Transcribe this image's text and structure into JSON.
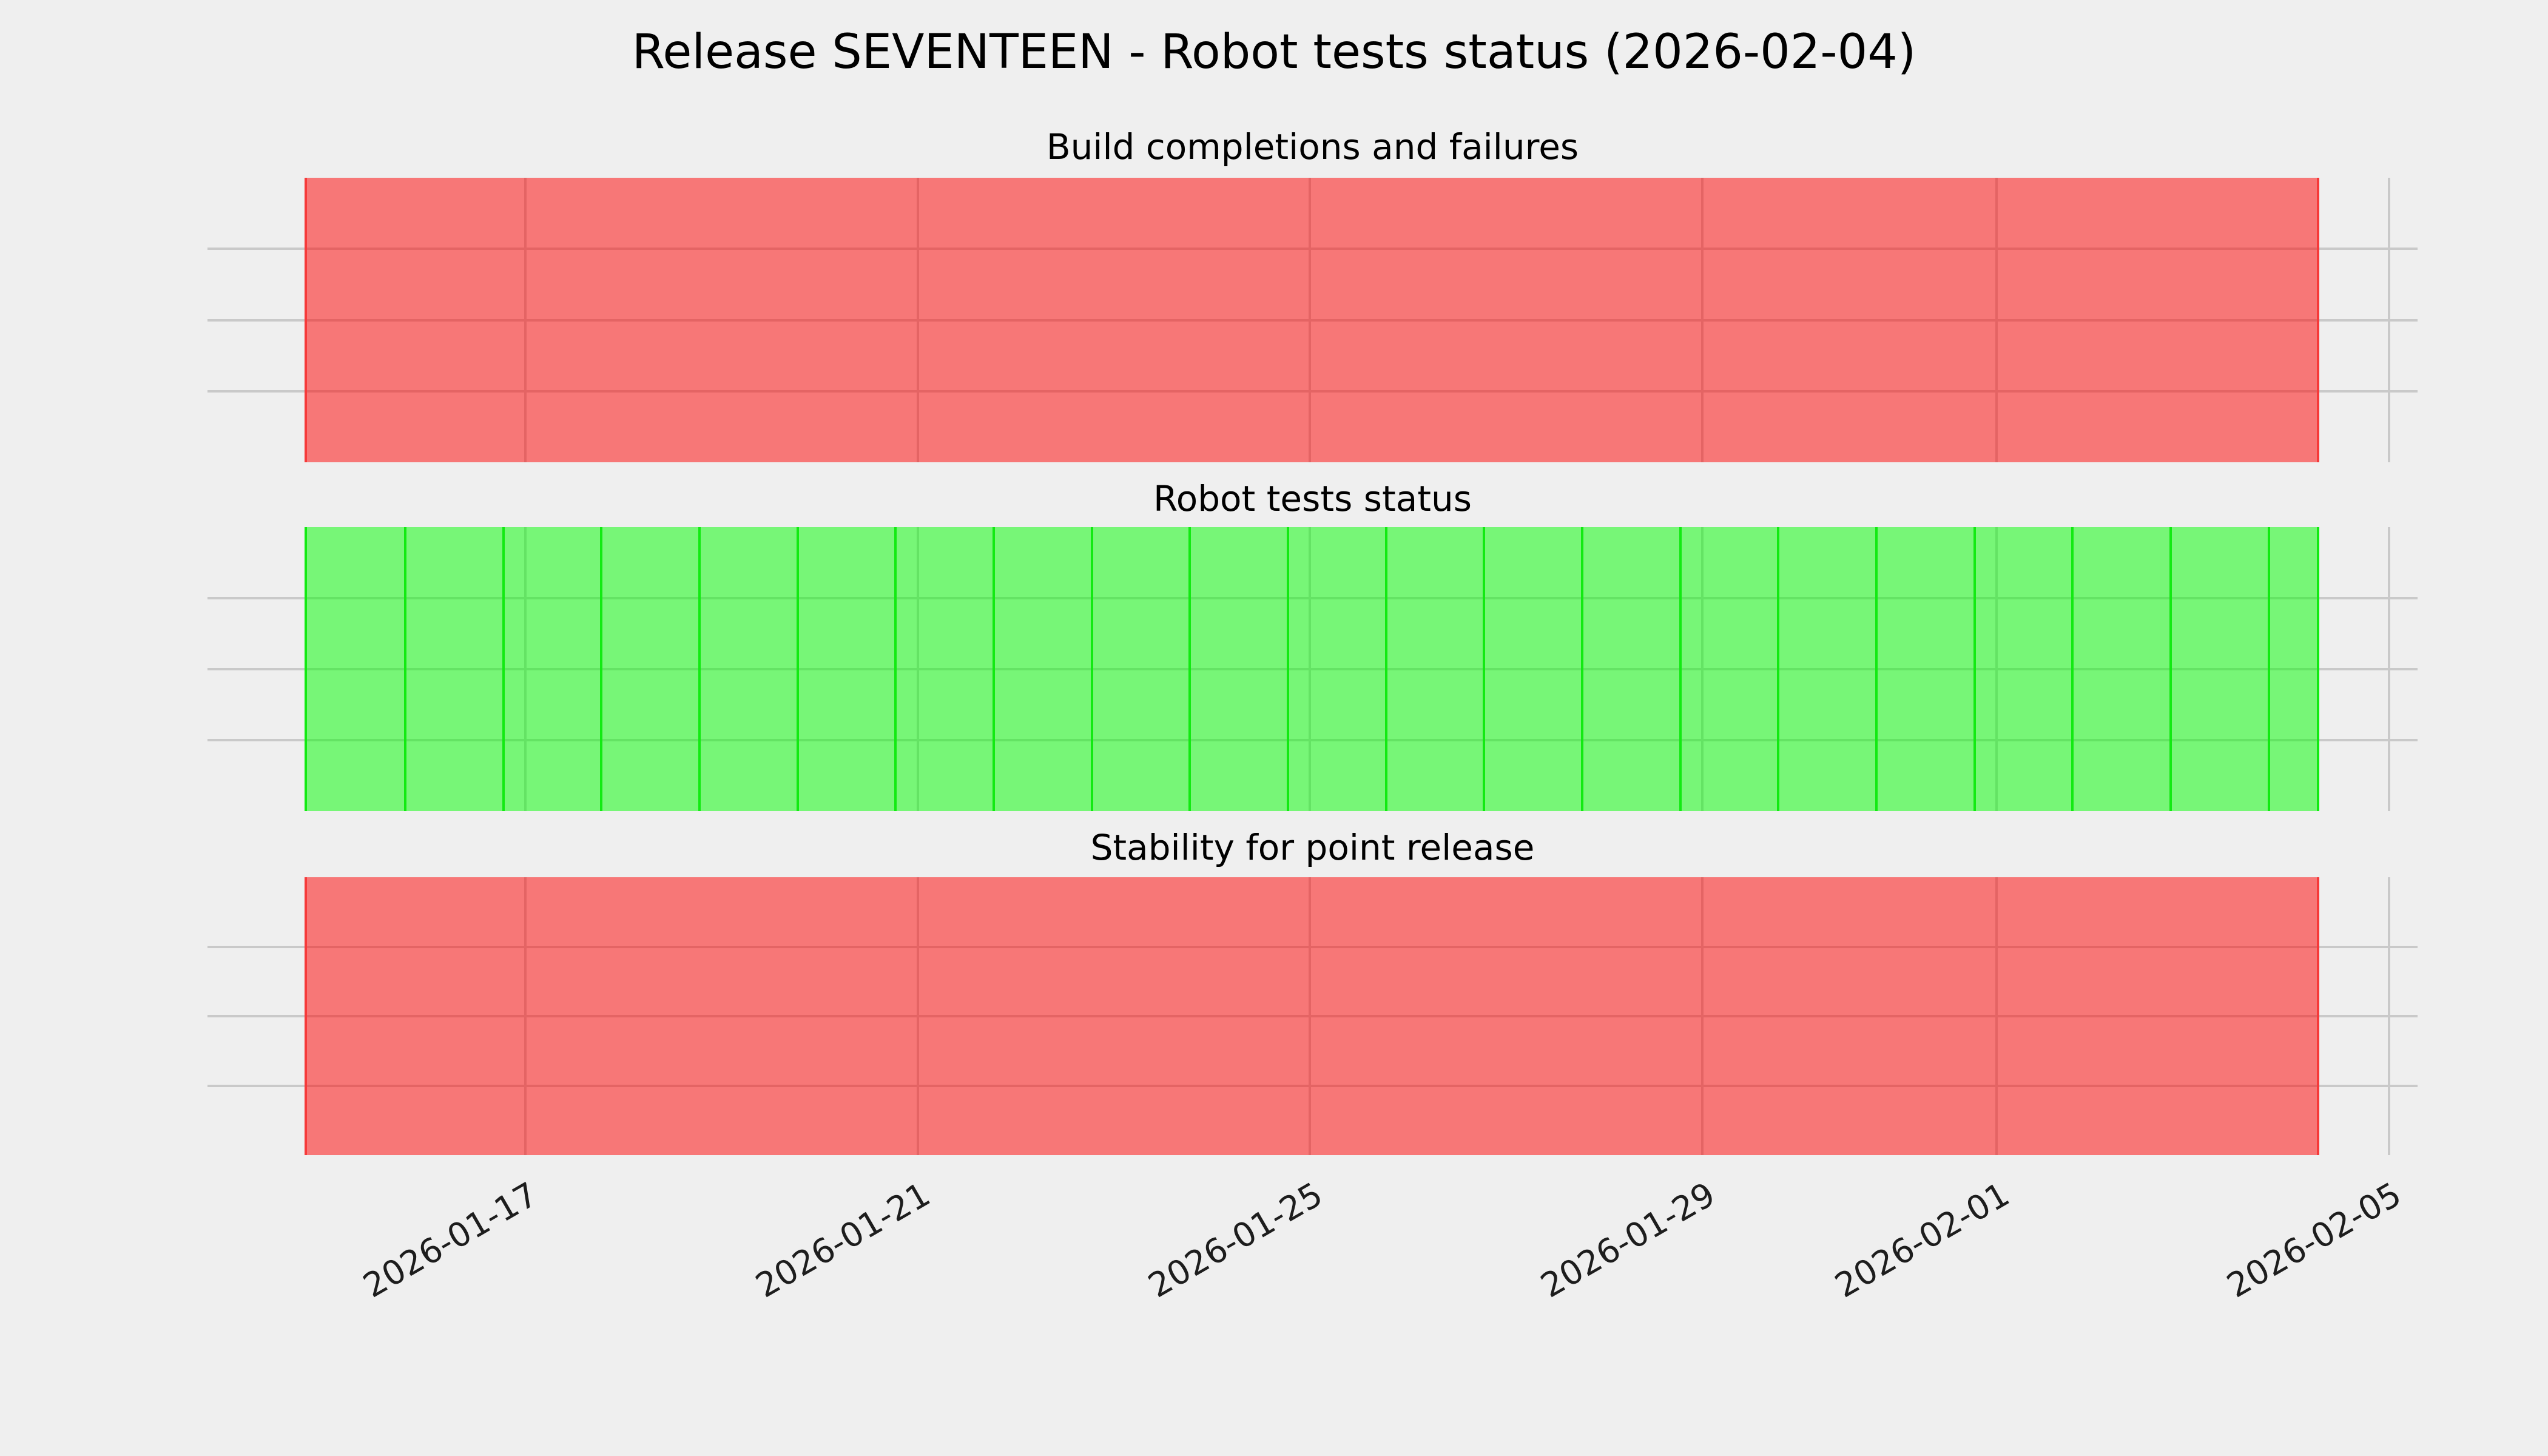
{
  "figure": {
    "title": "Release SEVENTEEN - Robot tests status (2026-02-04)",
    "background": "#efefef"
  },
  "chart_data": {
    "type": "bar",
    "chart_style": "status-timeline, horizontal full-height date spans (ggplot-like styling), 3 stacked subplots sharing one date x-axis",
    "title": "Release SEVENTEEN - Robot tests status (2026-02-04)",
    "x_axis": {
      "type": "date",
      "tick_labels": [
        "2026-01-17",
        "2026-01-21",
        "2026-01-25",
        "2026-01-29",
        "2026-02-01",
        "2026-02-05"
      ],
      "tick_rotation_deg": 30,
      "axis_start": "2026-01-13T17:00",
      "axis_end": "2026-02-05T07:00"
    },
    "y_axis": {
      "tick_labels_shown": false,
      "h_gridlines_per_subplot": 3
    },
    "grid": {
      "shown": true,
      "color": "#c9c9c9"
    },
    "legend": {
      "shown": false
    },
    "subplots": [
      {
        "title": "Build completions and failures",
        "status": "failing",
        "fill_color": "#ff0000",
        "fill_alpha": 0.5,
        "edge_color": "#f63a3a",
        "span_start": "2026-01-14T18:00",
        "span_end": "2026-02-04T07:00",
        "daily_dividers": false
      },
      {
        "title": "Robot tests status",
        "status": "passing",
        "fill_color": "#00ff00",
        "fill_alpha": 0.5,
        "edge_color": "#12ea12",
        "span_start": "2026-01-14T18:00",
        "span_end": "2026-02-04T07:00",
        "daily_dividers": true
      },
      {
        "title": "Stability for point release",
        "status": "failing",
        "fill_color": "#ff0000",
        "fill_alpha": 0.5,
        "edge_color": "#f63a3a",
        "span_start": "2026-01-14T18:00",
        "span_end": "2026-02-04T07:00",
        "daily_dividers": false
      }
    ]
  },
  "colors": {
    "background": "#efefef",
    "grid": "#c9c9c9",
    "passing": "#00ff00",
    "failing": "#ff0000",
    "tick_text": "#1d1d1d",
    "title_text": "#000000"
  }
}
